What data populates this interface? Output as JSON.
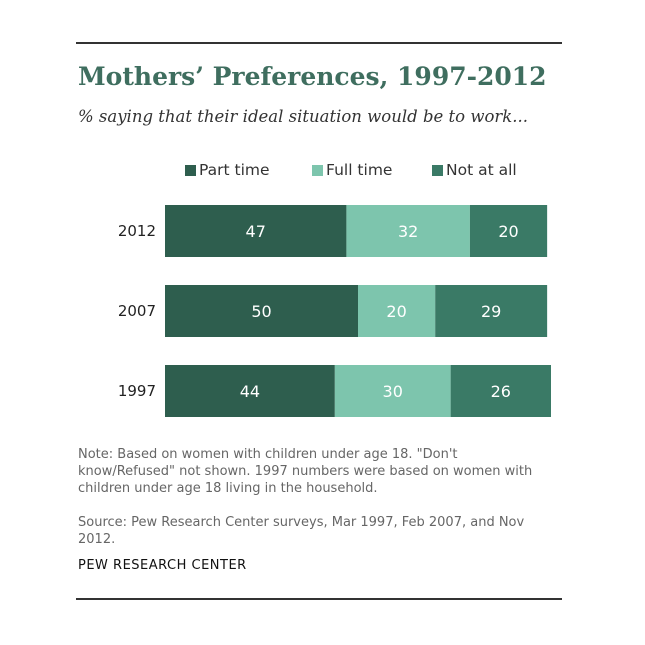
{
  "title": "Mothers’ Preferences, 1997-2012",
  "subtitle": "% saying that their ideal situation would be to work...",
  "note": "Note: Based on women with children under age 18. \"Don't know/Refused\" not shown. 1997 numbers were based on women with children under age 18 living in the household.",
  "source": "Source: Pew Research Center surveys, Mar 1997, Feb 2007, and Nov 2012.",
  "brand": "PEW RESEARCH CENTER",
  "colors": {
    "part_time": "#2e5e4e",
    "full_time": "#7dc5ad",
    "not_at_all": "#3a7a66",
    "title": "#3f6e5f"
  },
  "legend": [
    {
      "label": "Part time",
      "color": "#2e5e4e"
    },
    {
      "label": "Full time",
      "color": "#7dc5ad"
    },
    {
      "label": "Not at all",
      "color": "#3a7a66"
    }
  ],
  "chart_data": {
    "type": "bar",
    "orientation": "horizontal",
    "stacked": true,
    "categories": [
      "2012",
      "2007",
      "1997"
    ],
    "series": [
      {
        "name": "Part time",
        "values": [
          47,
          50,
          44
        ]
      },
      {
        "name": "Full time",
        "values": [
          32,
          20,
          30
        ]
      },
      {
        "name": "Not at all",
        "values": [
          20,
          29,
          26
        ]
      }
    ],
    "title": "Mothers’ Preferences, 1997-2012",
    "subtitle": "% saying that their ideal situation would be to work...",
    "legend_position": "top",
    "grid": false,
    "xlim": [
      0,
      100
    ]
  }
}
